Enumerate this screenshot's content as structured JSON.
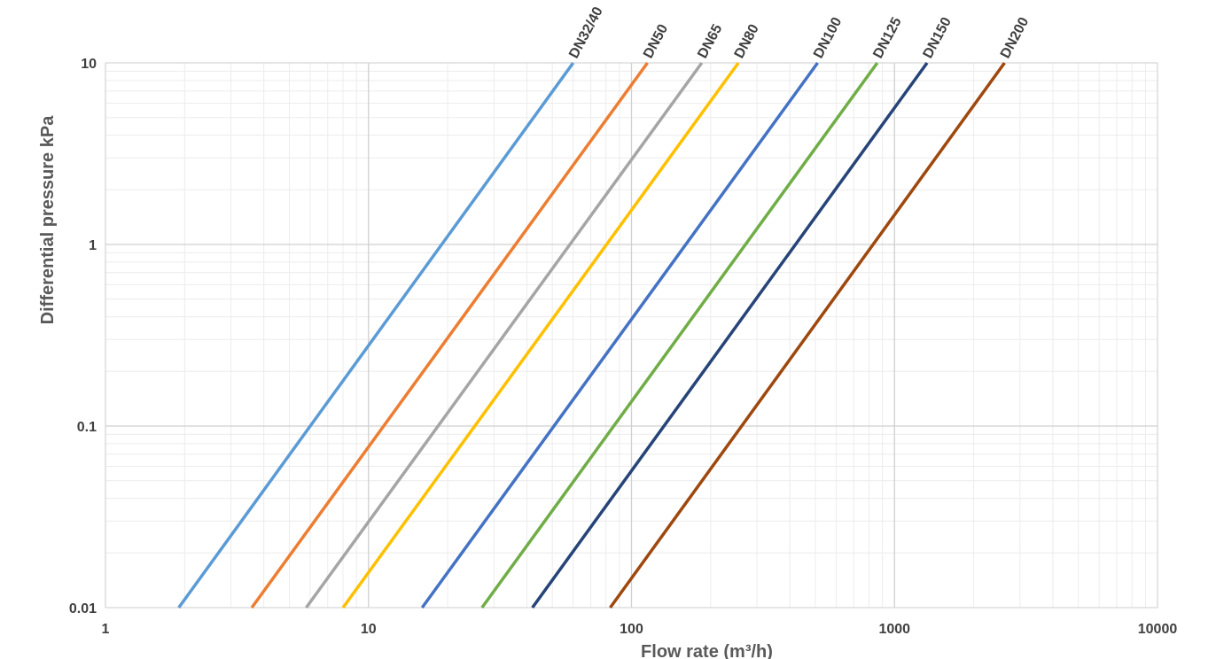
{
  "chart_data": {
    "type": "line",
    "title": "",
    "xlabel": "Flow rate (m³/h)",
    "ylabel": "Differential pressure kPa",
    "x_scale": "log",
    "y_scale": "log",
    "xlim": [
      1,
      10000
    ],
    "ylim": [
      0.01,
      10
    ],
    "grid": true,
    "legend": "none",
    "x_ticks": [
      {
        "value": 1,
        "label": "1"
      },
      {
        "value": 10,
        "label": "10"
      },
      {
        "value": 100,
        "label": "100"
      },
      {
        "value": 1000,
        "label": "1000"
      },
      {
        "value": 10000,
        "label": "10000"
      }
    ],
    "y_ticks": [
      {
        "value": 0.01,
        "label": "0.01"
      },
      {
        "value": 0.1,
        "label": "0.1"
      },
      {
        "value": 1,
        "label": "1"
      },
      {
        "value": 10,
        "label": "10"
      }
    ],
    "series": [
      {
        "name": "DN32/40",
        "color": "#5b9bd5",
        "points": [
          {
            "x": 1.9,
            "y": 0.01
          },
          {
            "x": 60,
            "y": 10
          }
        ]
      },
      {
        "name": "DN50",
        "color": "#ed7d31",
        "points": [
          {
            "x": 3.6,
            "y": 0.01
          },
          {
            "x": 115,
            "y": 10
          }
        ]
      },
      {
        "name": "DN65",
        "color": "#a5a5a5",
        "points": [
          {
            "x": 5.8,
            "y": 0.01
          },
          {
            "x": 185,
            "y": 10
          }
        ]
      },
      {
        "name": "DN80",
        "color": "#ffc000",
        "points": [
          {
            "x": 8,
            "y": 0.01
          },
          {
            "x": 255,
            "y": 10
          }
        ]
      },
      {
        "name": "DN100",
        "color": "#4472c4",
        "points": [
          {
            "x": 16,
            "y": 0.01
          },
          {
            "x": 510,
            "y": 10
          }
        ]
      },
      {
        "name": "DN125",
        "color": "#70ad47",
        "points": [
          {
            "x": 27,
            "y": 0.01
          },
          {
            "x": 860,
            "y": 10
          }
        ]
      },
      {
        "name": "DN150",
        "color": "#264478",
        "points": [
          {
            "x": 42,
            "y": 0.01
          },
          {
            "x": 1330,
            "y": 10
          }
        ]
      },
      {
        "name": "DN200",
        "color": "#9e480e",
        "points": [
          {
            "x": 83,
            "y": 0.01
          },
          {
            "x": 2620,
            "y": 10
          }
        ]
      }
    ]
  }
}
